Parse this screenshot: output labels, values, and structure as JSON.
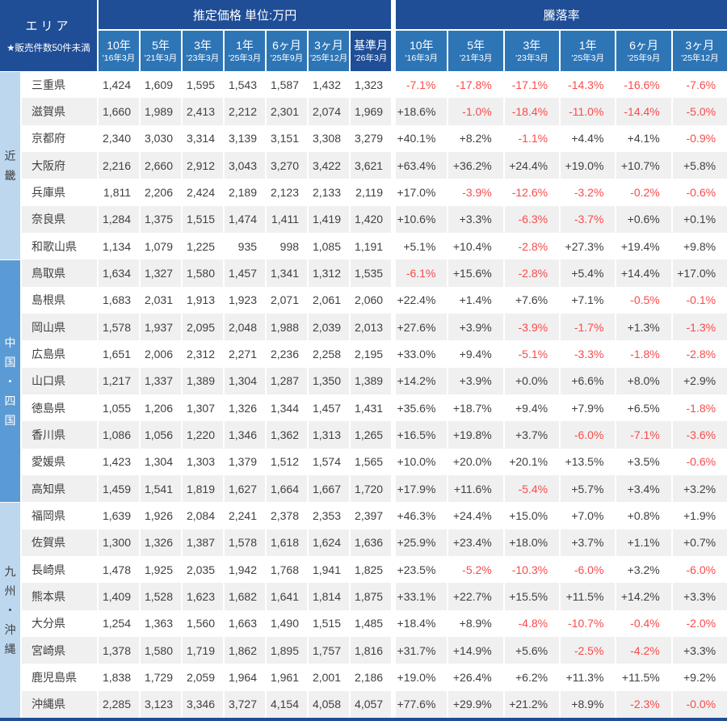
{
  "chart_data": {
    "type": "table",
    "area_header": {
      "title": "エリア",
      "note": "★販売件数50件未満"
    },
    "groups": {
      "price": "推定価格 単位:万円",
      "change": "騰落率"
    },
    "price_columns": [
      {
        "label": "10年",
        "sub": "'16年3月"
      },
      {
        "label": "5年",
        "sub": "'21年3月"
      },
      {
        "label": "3年",
        "sub": "'23年3月"
      },
      {
        "label": "1年",
        "sub": "'25年3月"
      },
      {
        "label": "6ヶ月",
        "sub": "'25年9月"
      },
      {
        "label": "3ヶ月",
        "sub": "'25年12月"
      },
      {
        "label": "基準月",
        "sub": "'26年3月",
        "highlight": true
      }
    ],
    "change_columns": [
      {
        "label": "10年",
        "sub": "'16年3月"
      },
      {
        "label": "5年",
        "sub": "'21年3月"
      },
      {
        "label": "3年",
        "sub": "'23年3月"
      },
      {
        "label": "1年",
        "sub": "'25年3月"
      },
      {
        "label": "6ヶ月",
        "sub": "'25年9月"
      },
      {
        "label": "3ヶ月",
        "sub": "'25年12月"
      }
    ],
    "regions": [
      {
        "name": "近畿",
        "tone": "light",
        "rows": [
          {
            "pref": "三重県",
            "prices": [
              "1,424",
              "1,609",
              "1,595",
              "1,543",
              "1,587",
              "1,432",
              "1,323"
            ],
            "changes": [
              "-7.1%",
              "-17.8%",
              "-17.1%",
              "-14.3%",
              "-16.6%",
              "-7.6%"
            ]
          },
          {
            "pref": "滋賀県",
            "prices": [
              "1,660",
              "1,989",
              "2,413",
              "2,212",
              "2,301",
              "2,074",
              "1,969"
            ],
            "changes": [
              "+18.6%",
              "-1.0%",
              "-18.4%",
              "-11.0%",
              "-14.4%",
              "-5.0%"
            ]
          },
          {
            "pref": "京都府",
            "prices": [
              "2,340",
              "3,030",
              "3,314",
              "3,139",
              "3,151",
              "3,308",
              "3,279"
            ],
            "changes": [
              "+40.1%",
              "+8.2%",
              "-1.1%",
              "+4.4%",
              "+4.1%",
              "-0.9%"
            ]
          },
          {
            "pref": "大阪府",
            "prices": [
              "2,216",
              "2,660",
              "2,912",
              "3,043",
              "3,270",
              "3,422",
              "3,621"
            ],
            "changes": [
              "+63.4%",
              "+36.2%",
              "+24.4%",
              "+19.0%",
              "+10.7%",
              "+5.8%"
            ]
          },
          {
            "pref": "兵庫県",
            "prices": [
              "1,811",
              "2,206",
              "2,424",
              "2,189",
              "2,123",
              "2,133",
              "2,119"
            ],
            "changes": [
              "+17.0%",
              "-3.9%",
              "-12.6%",
              "-3.2%",
              "-0.2%",
              "-0.6%"
            ]
          },
          {
            "pref": "奈良県",
            "prices": [
              "1,284",
              "1,375",
              "1,515",
              "1,474",
              "1,411",
              "1,419",
              "1,420"
            ],
            "changes": [
              "+10.6%",
              "+3.3%",
              "-6.3%",
              "-3.7%",
              "+0.6%",
              "+0.1%"
            ]
          },
          {
            "pref": "和歌山県",
            "prices": [
              "1,134",
              "1,079",
              "1,225",
              "935",
              "998",
              "1,085",
              "1,191"
            ],
            "changes": [
              "+5.1%",
              "+10.4%",
              "-2.8%",
              "+27.3%",
              "+19.4%",
              "+9.8%"
            ]
          }
        ]
      },
      {
        "name": "中国・四国",
        "tone": "strong",
        "rows": [
          {
            "pref": "鳥取県",
            "prices": [
              "1,634",
              "1,327",
              "1,580",
              "1,457",
              "1,341",
              "1,312",
              "1,535"
            ],
            "changes": [
              "-6.1%",
              "+15.6%",
              "-2.8%",
              "+5.4%",
              "+14.4%",
              "+17.0%"
            ]
          },
          {
            "pref": "島根県",
            "prices": [
              "1,683",
              "2,031",
              "1,913",
              "1,923",
              "2,071",
              "2,061",
              "2,060"
            ],
            "changes": [
              "+22.4%",
              "+1.4%",
              "+7.6%",
              "+7.1%",
              "-0.5%",
              "-0.1%"
            ]
          },
          {
            "pref": "岡山県",
            "prices": [
              "1,578",
              "1,937",
              "2,095",
              "2,048",
              "1,988",
              "2,039",
              "2,013"
            ],
            "changes": [
              "+27.6%",
              "+3.9%",
              "-3.9%",
              "-1.7%",
              "+1.3%",
              "-1.3%"
            ]
          },
          {
            "pref": "広島県",
            "prices": [
              "1,651",
              "2,006",
              "2,312",
              "2,271",
              "2,236",
              "2,258",
              "2,195"
            ],
            "changes": [
              "+33.0%",
              "+9.4%",
              "-5.1%",
              "-3.3%",
              "-1.8%",
              "-2.8%"
            ]
          },
          {
            "pref": "山口県",
            "prices": [
              "1,217",
              "1,337",
              "1,389",
              "1,304",
              "1,287",
              "1,350",
              "1,389"
            ],
            "changes": [
              "+14.2%",
              "+3.9%",
              "+0.0%",
              "+6.6%",
              "+8.0%",
              "+2.9%"
            ]
          },
          {
            "pref": "徳島県",
            "prices": [
              "1,055",
              "1,206",
              "1,307",
              "1,326",
              "1,344",
              "1,457",
              "1,431"
            ],
            "changes": [
              "+35.6%",
              "+18.7%",
              "+9.4%",
              "+7.9%",
              "+6.5%",
              "-1.8%"
            ]
          },
          {
            "pref": "香川県",
            "prices": [
              "1,086",
              "1,056",
              "1,220",
              "1,346",
              "1,362",
              "1,313",
              "1,265"
            ],
            "changes": [
              "+16.5%",
              "+19.8%",
              "+3.7%",
              "-6.0%",
              "-7.1%",
              "-3.6%"
            ]
          },
          {
            "pref": "愛媛県",
            "prices": [
              "1,423",
              "1,304",
              "1,303",
              "1,379",
              "1,512",
              "1,574",
              "1,565"
            ],
            "changes": [
              "+10.0%",
              "+20.0%",
              "+20.1%",
              "+13.5%",
              "+3.5%",
              "-0.6%"
            ]
          },
          {
            "pref": "高知県",
            "prices": [
              "1,459",
              "1,541",
              "1,819",
              "1,627",
              "1,664",
              "1,667",
              "1,720"
            ],
            "changes": [
              "+17.9%",
              "+11.6%",
              "-5.4%",
              "+5.7%",
              "+3.4%",
              "+3.2%"
            ]
          }
        ]
      },
      {
        "name": "九州・沖縄",
        "tone": "light",
        "rows": [
          {
            "pref": "福岡県",
            "prices": [
              "1,639",
              "1,926",
              "2,084",
              "2,241",
              "2,378",
              "2,353",
              "2,397"
            ],
            "changes": [
              "+46.3%",
              "+24.4%",
              "+15.0%",
              "+7.0%",
              "+0.8%",
              "+1.9%"
            ]
          },
          {
            "pref": "佐賀県",
            "prices": [
              "1,300",
              "1,326",
              "1,387",
              "1,578",
              "1,618",
              "1,624",
              "1,636"
            ],
            "changes": [
              "+25.9%",
              "+23.4%",
              "+18.0%",
              "+3.7%",
              "+1.1%",
              "+0.7%"
            ]
          },
          {
            "pref": "長崎県",
            "prices": [
              "1,478",
              "1,925",
              "2,035",
              "1,942",
              "1,768",
              "1,941",
              "1,825"
            ],
            "changes": [
              "+23.5%",
              "-5.2%",
              "-10.3%",
              "-6.0%",
              "+3.2%",
              "-6.0%"
            ]
          },
          {
            "pref": "熊本県",
            "prices": [
              "1,409",
              "1,528",
              "1,623",
              "1,682",
              "1,641",
              "1,814",
              "1,875"
            ],
            "changes": [
              "+33.1%",
              "+22.7%",
              "+15.5%",
              "+11.5%",
              "+14.2%",
              "+3.3%"
            ]
          },
          {
            "pref": "大分県",
            "prices": [
              "1,254",
              "1,363",
              "1,560",
              "1,663",
              "1,490",
              "1,515",
              "1,485"
            ],
            "changes": [
              "+18.4%",
              "+8.9%",
              "-4.8%",
              "-10.7%",
              "-0.4%",
              "-2.0%"
            ]
          },
          {
            "pref": "宮崎県",
            "prices": [
              "1,378",
              "1,580",
              "1,719",
              "1,862",
              "1,895",
              "1,757",
              "1,816"
            ],
            "changes": [
              "+31.7%",
              "+14.9%",
              "+5.6%",
              "-2.5%",
              "-4.2%",
              "+3.3%"
            ]
          },
          {
            "pref": "鹿児島県",
            "prices": [
              "1,838",
              "1,729",
              "2,059",
              "1,964",
              "1,961",
              "2,001",
              "2,186"
            ],
            "changes": [
              "+19.0%",
              "+26.4%",
              "+6.2%",
              "+11.3%",
              "+11.5%",
              "+9.2%"
            ]
          },
          {
            "pref": "沖縄県",
            "prices": [
              "2,285",
              "3,123",
              "3,346",
              "3,727",
              "4,154",
              "4,058",
              "4,057"
            ],
            "changes": [
              "+77.6%",
              "+29.9%",
              "+21.2%",
              "+8.9%",
              "-2.3%",
              "-0.0%"
            ]
          }
        ]
      }
    ],
    "colors": {
      "header_dark": "#1F4E96",
      "header_blue": "#2E75B6",
      "region_band_strong": "#5B9BD5",
      "region_band_light": "#BDD7EE",
      "row_stripe": "#F0F0F0",
      "negative_red": "#F94B4B",
      "text": "#404040"
    }
  }
}
